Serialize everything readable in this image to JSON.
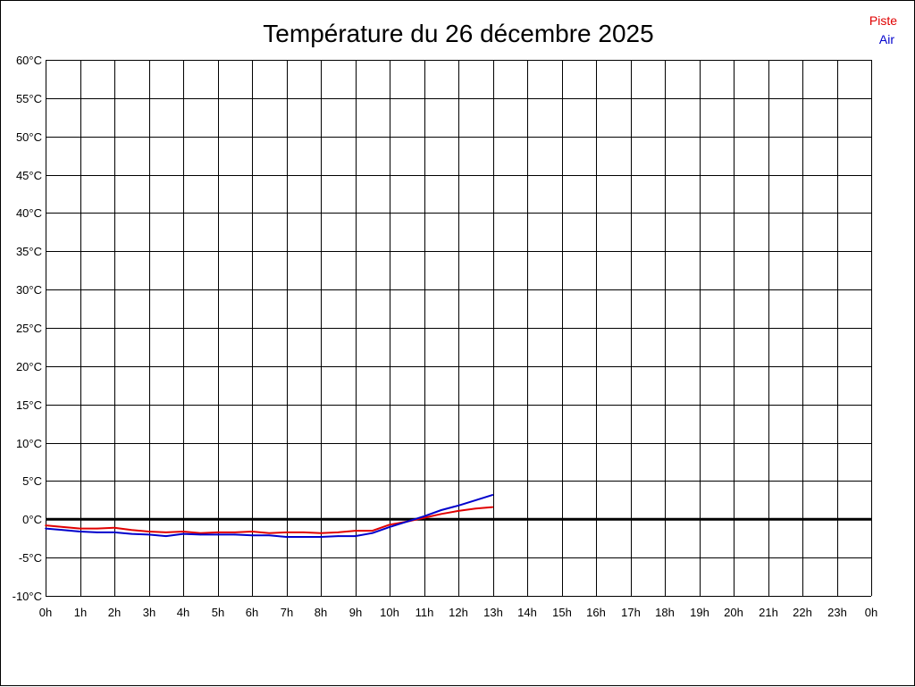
{
  "chart_data": {
    "type": "line",
    "title": "Température du 26 décembre 2025",
    "xlabel": "",
    "ylabel": "",
    "ylim": [
      -10,
      60
    ],
    "xlim": [
      0,
      24
    ],
    "grid": true,
    "legend_placement": "top-right",
    "x_tick_labels": [
      "0h",
      "1h",
      "2h",
      "3h",
      "4h",
      "5h",
      "6h",
      "7h",
      "8h",
      "9h",
      "10h",
      "11h",
      "12h",
      "13h",
      "14h",
      "15h",
      "16h",
      "17h",
      "18h",
      "19h",
      "20h",
      "21h",
      "22h",
      "23h",
      "0h"
    ],
    "y_tick_values": [
      60,
      55,
      50,
      45,
      40,
      35,
      30,
      25,
      20,
      15,
      10,
      5,
      0,
      -5,
      -10
    ],
    "y_tick_labels": [
      "60°C",
      "55°C",
      "50°C",
      "45°C",
      "40°C",
      "35°C",
      "30°C",
      "25°C",
      "20°C",
      "15°C",
      "10°C",
      "5°C",
      "0°C",
      "-5°C",
      "-10°C"
    ],
    "series": [
      {
        "name": "Piste",
        "color": "#e00000",
        "x": [
          0,
          0.5,
          1,
          1.5,
          2,
          2.5,
          3,
          3.5,
          4,
          4.5,
          5,
          5.5,
          6,
          6.5,
          7,
          7.5,
          8,
          8.5,
          9,
          9.5,
          10,
          10.5,
          11,
          11.5,
          12,
          12.5,
          13
        ],
        "y": [
          -0.8,
          -1.0,
          -1.2,
          -1.2,
          -1.1,
          -1.4,
          -1.6,
          -1.7,
          -1.6,
          -1.8,
          -1.7,
          -1.7,
          -1.6,
          -1.8,
          -1.7,
          -1.7,
          -1.8,
          -1.7,
          -1.5,
          -1.5,
          -0.7,
          -0.3,
          0.2,
          0.7,
          1.1,
          1.4,
          1.6
        ]
      },
      {
        "name": "Air",
        "color": "#0000cc",
        "x": [
          0,
          0.5,
          1,
          1.5,
          2,
          2.5,
          3,
          3.5,
          4,
          4.5,
          5,
          5.5,
          6,
          6.5,
          7,
          7.5,
          8,
          8.5,
          9,
          9.5,
          10,
          10.5,
          11,
          11.5,
          12,
          12.5,
          13
        ],
        "y": [
          -1.2,
          -1.4,
          -1.6,
          -1.7,
          -1.7,
          -1.9,
          -2.0,
          -2.2,
          -1.9,
          -2.0,
          -2.0,
          -2.0,
          -2.1,
          -2.1,
          -2.3,
          -2.3,
          -2.3,
          -2.2,
          -2.2,
          -1.8,
          -1.0,
          -0.3,
          0.4,
          1.2,
          1.8,
          2.5,
          3.2
        ]
      }
    ],
    "zero_line_color": "#000000"
  }
}
